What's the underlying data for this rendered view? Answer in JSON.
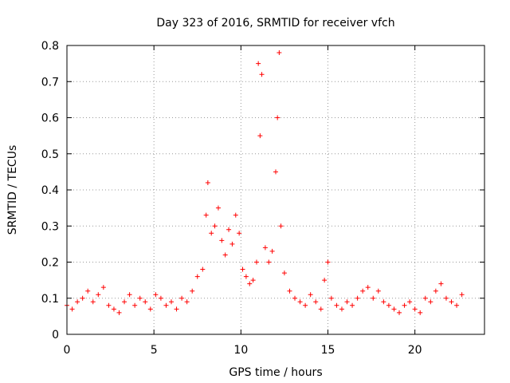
{
  "chart_data": {
    "type": "scatter",
    "title": "Day 323 of 2016, SRMTID for receiver vfch",
    "xlabel": "GPS time / hours",
    "ylabel": "SRMTID / TECUs",
    "xlim": [
      0,
      24
    ],
    "ylim": [
      0,
      0.8
    ],
    "xticks": [
      0,
      5,
      10,
      15,
      20
    ],
    "xtick_labels": [
      "0",
      "5",
      "10",
      "15",
      "20"
    ],
    "yticks": [
      0,
      0.1,
      0.2,
      0.3,
      0.4,
      0.5,
      0.6,
      0.7,
      0.8
    ],
    "ytick_labels": [
      "0",
      "0.1",
      "0.2",
      "0.3",
      "0.4",
      "0.5",
      "0.6",
      "0.7",
      "0.8"
    ],
    "grid": true,
    "marker": "+",
    "color": "#ff0000",
    "series": [
      {
        "name": "SRMTID",
        "x": [
          0.0,
          0.3,
          0.6,
          0.9,
          1.2,
          1.5,
          1.8,
          2.1,
          2.4,
          2.7,
          3.0,
          3.3,
          3.6,
          3.9,
          4.2,
          4.5,
          4.8,
          5.1,
          5.4,
          5.7,
          6.0,
          6.3,
          6.6,
          6.9,
          7.2,
          7.5,
          7.8,
          8.0,
          8.1,
          8.3,
          8.5,
          8.7,
          8.9,
          9.1,
          9.3,
          9.5,
          9.7,
          9.9,
          10.1,
          10.3,
          10.5,
          10.7,
          10.9,
          11.0,
          11.1,
          11.2,
          11.4,
          11.6,
          11.8,
          12.0,
          12.1,
          12.2,
          12.3,
          12.5,
          12.8,
          13.1,
          13.4,
          13.7,
          14.0,
          14.3,
          14.6,
          14.8,
          15.0,
          15.2,
          15.5,
          15.8,
          16.1,
          16.4,
          16.7,
          17.0,
          17.3,
          17.6,
          17.9,
          18.2,
          18.5,
          18.8,
          19.1,
          19.4,
          19.7,
          20.0,
          20.3,
          20.6,
          20.9,
          21.2,
          21.5,
          21.8,
          22.1,
          22.4,
          22.7
        ],
        "y": [
          0.08,
          0.07,
          0.09,
          0.1,
          0.12,
          0.09,
          0.11,
          0.13,
          0.08,
          0.07,
          0.06,
          0.09,
          0.11,
          0.08,
          0.1,
          0.09,
          0.07,
          0.11,
          0.1,
          0.08,
          0.09,
          0.07,
          0.1,
          0.09,
          0.12,
          0.16,
          0.18,
          0.33,
          0.42,
          0.28,
          0.3,
          0.35,
          0.26,
          0.22,
          0.29,
          0.25,
          0.33,
          0.28,
          0.18,
          0.16,
          0.14,
          0.15,
          0.2,
          0.75,
          0.55,
          0.72,
          0.24,
          0.2,
          0.23,
          0.45,
          0.6,
          0.78,
          0.3,
          0.17,
          0.12,
          0.1,
          0.09,
          0.08,
          0.11,
          0.09,
          0.07,
          0.15,
          0.2,
          0.1,
          0.08,
          0.07,
          0.09,
          0.08,
          0.1,
          0.12,
          0.13,
          0.1,
          0.12,
          0.09,
          0.08,
          0.07,
          0.06,
          0.08,
          0.09,
          0.07,
          0.06,
          0.1,
          0.09,
          0.12,
          0.14,
          0.1,
          0.09,
          0.08,
          0.11
        ]
      }
    ]
  }
}
